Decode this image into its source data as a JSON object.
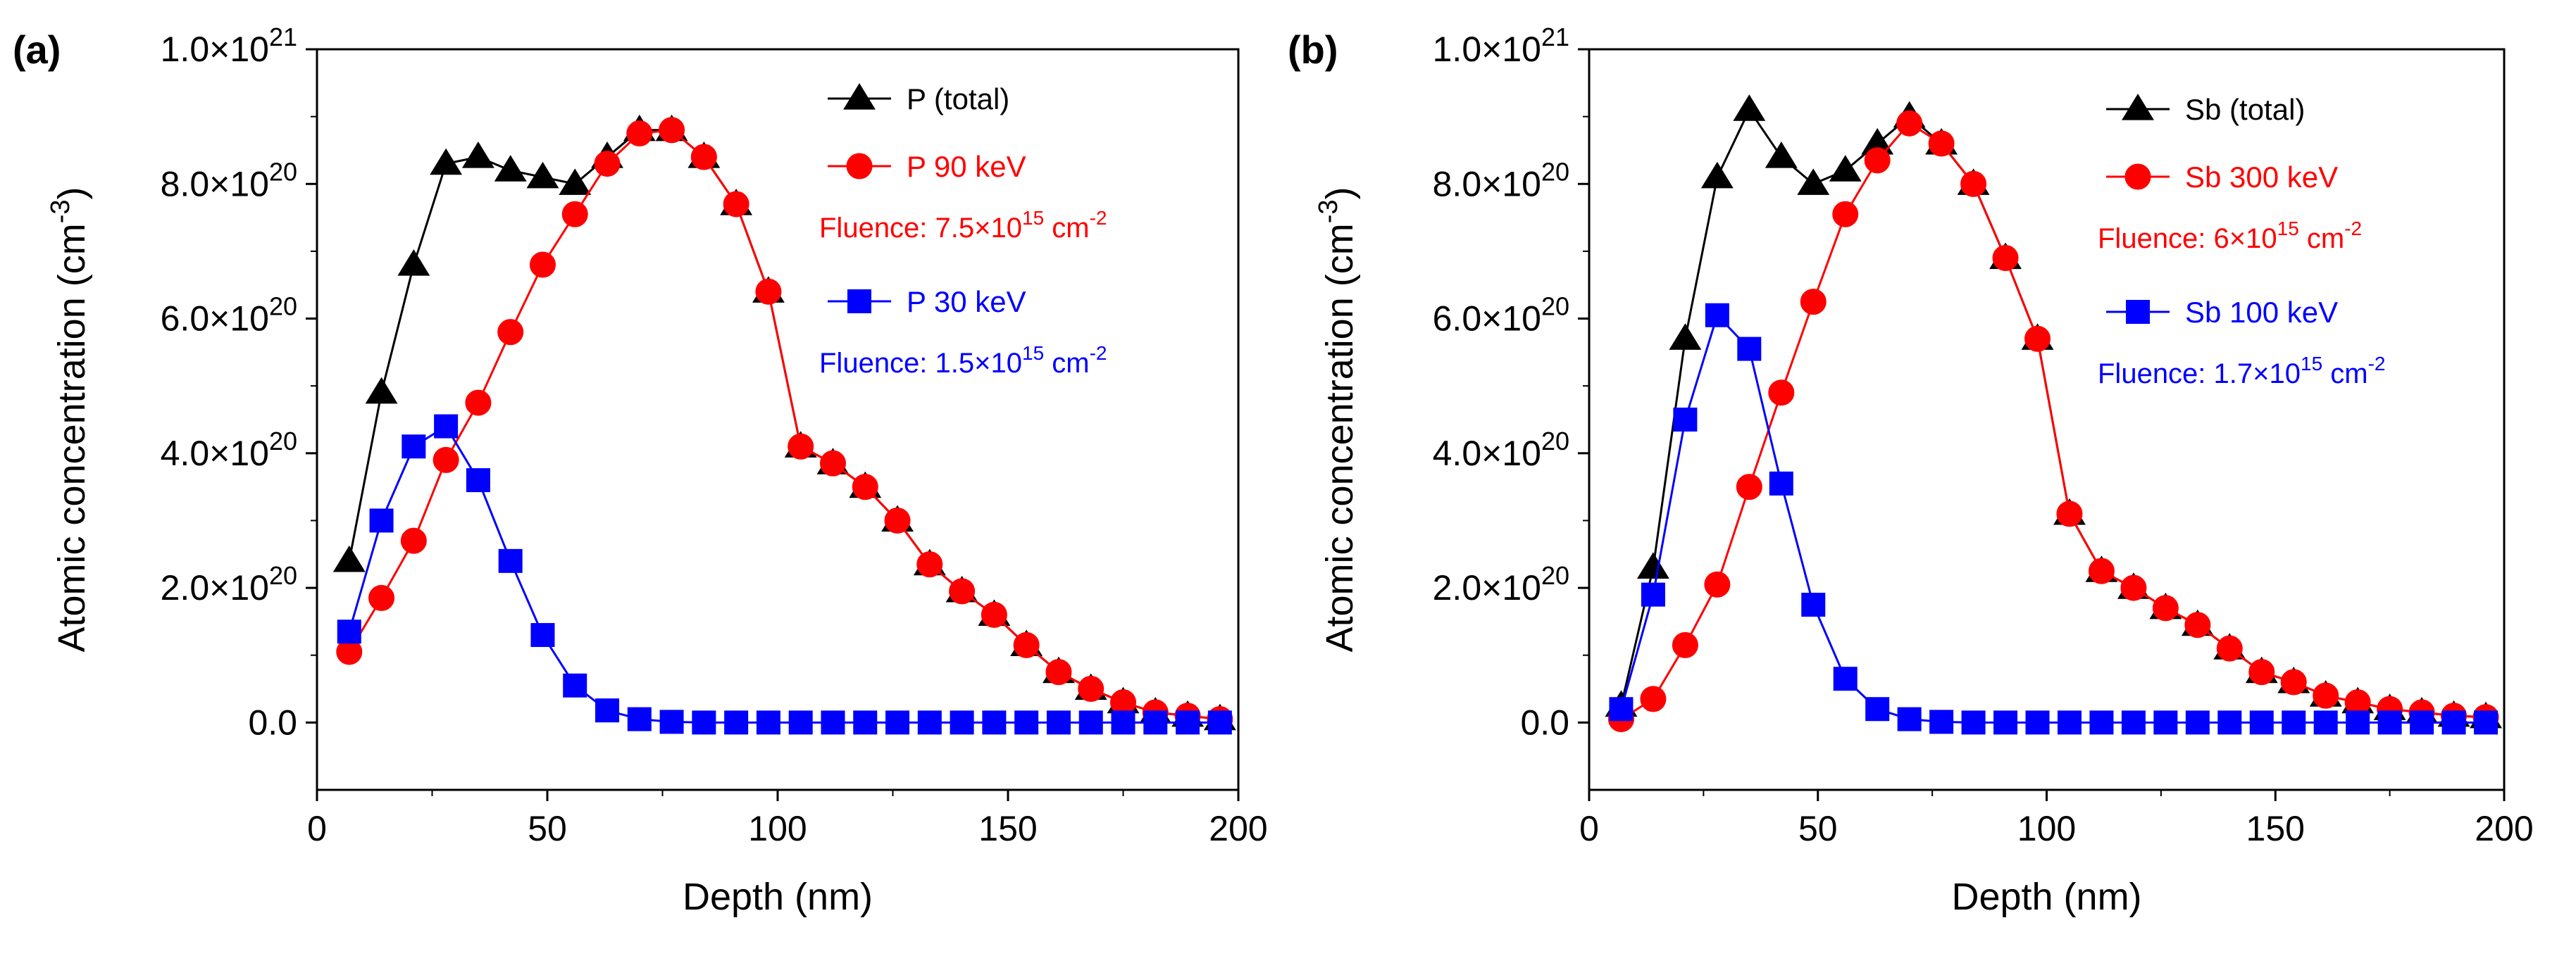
{
  "chart_data": [
    {
      "panel_label": "(a)",
      "type": "line",
      "xlabel": "Depth (nm)",
      "ylabel_main": "Atomic concentration (cm",
      "ylabel_sup": "-3",
      "ylabel_end": ")",
      "xlim": [
        0,
        200
      ],
      "ylim": [
        -1e+20,
        1e+21
      ],
      "xticks": [
        0,
        50,
        100,
        150,
        200
      ],
      "yticks": [
        {
          "value": 0,
          "base": "0.0",
          "exp": ""
        },
        {
          "value": 2e+20,
          "base": "2.0×10",
          "exp": "20"
        },
        {
          "value": 4e+20,
          "base": "4.0×10",
          "exp": "20"
        },
        {
          "value": 6e+20,
          "base": "6.0×10",
          "exp": "20"
        },
        {
          "value": 8e+20,
          "base": "8.0×10",
          "exp": "20"
        },
        {
          "value": 1e+21,
          "base": "1.0×10",
          "exp": "21"
        }
      ],
      "x": [
        7,
        14,
        21,
        28,
        35,
        42,
        49,
        56,
        63,
        70,
        77,
        84,
        91,
        98,
        105,
        112,
        119,
        126,
        133,
        140,
        147,
        154,
        161,
        168,
        175,
        182,
        189,
        196
      ],
      "series": [
        {
          "name": "P (total)",
          "color": "#000000",
          "marker": "triangle",
          "values": [
            2.4e+20,
            4.9e+20,
            6.8e+20,
            8.3e+20,
            8.4e+20,
            8.2e+20,
            8.1e+20,
            8e+20,
            8.4e+20,
            8.8e+20,
            8.8e+20,
            8.4e+20,
            7.7e+20,
            6.4e+20,
            4.1e+20,
            3.85e+20,
            3.5e+20,
            3e+20,
            2.35e+20,
            1.95e+20,
            1.6e+20,
            1.15e+20,
            7.5e+19,
            5e+19,
            3e+19,
            1.5e+19,
            1e+19,
            5e+18
          ]
        },
        {
          "name": "P 90 keV",
          "color": "#ff0000",
          "marker": "circle",
          "values": [
            1.05e+20,
            1.85e+20,
            2.7e+20,
            3.9e+20,
            4.75e+20,
            5.8e+20,
            6.8e+20,
            7.55e+20,
            8.3e+20,
            8.75e+20,
            8.8e+20,
            8.4e+20,
            7.7e+20,
            6.4e+20,
            4.1e+20,
            3.85e+20,
            3.5e+20,
            3e+20,
            2.35e+20,
            1.95e+20,
            1.6e+20,
            1.15e+20,
            7.5e+19,
            5e+19,
            3e+19,
            1.5e+19,
            1e+19,
            5e+18
          ]
        },
        {
          "name": "P 30 keV",
          "color": "#0000ff",
          "marker": "square",
          "values": [
            1.35e+20,
            3e+20,
            4.1e+20,
            4.4e+20,
            3.6e+20,
            2.4e+20,
            1.3e+20,
            5.5e+19,
            1.8e+19,
            5e+18,
            1e+18,
            0,
            0,
            0,
            0,
            0,
            0,
            0,
            0,
            0,
            0,
            0,
            0,
            0,
            0,
            0,
            0,
            0
          ]
        }
      ],
      "fluence_texts": [
        {
          "after_series": 1,
          "base": "Fluence: 7.5×10",
          "exp": "15",
          "unit": " cm",
          "unit_exp": "-2",
          "color": "#ff0000"
        },
        {
          "after_series": 2,
          "base": "Fluence: 1.5×10",
          "exp": "15",
          "unit": " cm",
          "unit_exp": "-2",
          "color": "#0000ff"
        }
      ]
    },
    {
      "panel_label": "(b)",
      "type": "line",
      "xlabel": "Depth (nm)",
      "ylabel_main": "Atomic concentration (cm",
      "ylabel_sup": "-3",
      "ylabel_end": ")",
      "xlim": [
        0,
        200
      ],
      "ylim": [
        -1e+20,
        1e+21
      ],
      "xticks": [
        0,
        50,
        100,
        150,
        200
      ],
      "yticks": [
        {
          "value": 0,
          "base": "0.0",
          "exp": ""
        },
        {
          "value": 2e+20,
          "base": "2.0×10",
          "exp": "20"
        },
        {
          "value": 4e+20,
          "base": "4.0×10",
          "exp": "20"
        },
        {
          "value": 6e+20,
          "base": "6.0×10",
          "exp": "20"
        },
        {
          "value": 8e+20,
          "base": "8.0×10",
          "exp": "20"
        },
        {
          "value": 1e+21,
          "base": "1.0×10",
          "exp": "21"
        }
      ],
      "x": [
        7,
        14,
        21,
        28,
        35,
        42,
        49,
        56,
        63,
        70,
        77,
        84,
        91,
        98,
        105,
        112,
        119,
        126,
        133,
        140,
        147,
        154,
        161,
        168,
        175,
        182,
        189,
        196
      ],
      "series": [
        {
          "name": "Sb (total)",
          "color": "#000000",
          "marker": "triangle",
          "values": [
            2.5e+19,
            2.3e+20,
            5.7e+20,
            8.1e+20,
            9.1e+20,
            8.4e+20,
            8e+20,
            8.2e+20,
            8.6e+20,
            9e+20,
            8.6e+20,
            8e+20,
            6.9e+20,
            5.7e+20,
            3.1e+20,
            2.25e+20,
            2e+20,
            1.7e+20,
            1.45e+20,
            1.1e+20,
            7.5e+19,
            6e+19,
            4e+19,
            3e+19,
            2e+19,
            1.5e+19,
            1e+19,
            8e+18
          ]
        },
        {
          "name": "Sb 300 keV",
          "color": "#ff0000",
          "marker": "circle",
          "values": [
            5e+18,
            3.5e+19,
            1.15e+20,
            2.05e+20,
            3.5e+20,
            4.9e+20,
            6.25e+20,
            7.55e+20,
            8.35e+20,
            8.9e+20,
            8.6e+20,
            8e+20,
            6.9e+20,
            5.7e+20,
            3.1e+20,
            2.25e+20,
            2e+20,
            1.7e+20,
            1.45e+20,
            1.1e+20,
            7.5e+19,
            6e+19,
            4e+19,
            3e+19,
            2e+19,
            1.5e+19,
            1e+19,
            8e+18
          ]
        },
        {
          "name": "Sb 100 keV",
          "color": "#0000ff",
          "marker": "square",
          "values": [
            2e+19,
            1.9e+20,
            4.5e+20,
            6.05e+20,
            5.55e+20,
            3.55e+20,
            1.75e+20,
            6.5e+19,
            2e+19,
            5e+18,
            1e+18,
            0,
            0,
            0,
            0,
            0,
            0,
            0,
            0,
            0,
            0,
            0,
            0,
            0,
            0,
            0,
            0,
            0
          ]
        }
      ],
      "fluence_texts": [
        {
          "after_series": 1,
          "base": "Fluence: 6×10",
          "exp": "15",
          "unit": " cm",
          "unit_exp": "-2",
          "color": "#ff0000"
        },
        {
          "after_series": 2,
          "base": "Fluence: 1.7×10",
          "exp": "15",
          "unit": " cm",
          "unit_exp": "-2",
          "color": "#0000ff"
        }
      ]
    }
  ]
}
